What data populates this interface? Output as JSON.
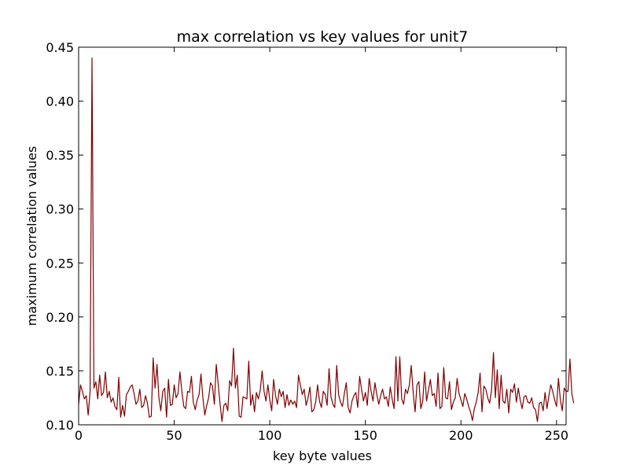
{
  "chart_data": {
    "type": "line",
    "title": "max correlation vs key values for unit7",
    "xlabel": "key byte values",
    "ylabel": "maximum correlation values",
    "xlim": [
      0,
      255
    ],
    "ylim": [
      0.1,
      0.45
    ],
    "x_ticks": [
      0,
      50,
      100,
      150,
      200,
      250
    ],
    "y_ticks": [
      "0.10",
      "0.15",
      "0.20",
      "0.25",
      "0.30",
      "0.35",
      "0.40",
      "0.45"
    ],
    "grid": false,
    "series": [
      {
        "color": "#800000",
        "values": [
          0.119,
          0.137,
          0.131,
          0.124,
          0.127,
          0.109,
          0.131,
          0.44,
          0.134,
          0.14,
          0.124,
          0.146,
          0.127,
          0.13,
          0.149,
          0.125,
          0.131,
          0.121,
          0.125,
          0.117,
          0.114,
          0.144,
          0.107,
          0.118,
          0.108,
          0.128,
          0.131,
          0.135,
          0.137,
          0.129,
          0.119,
          0.122,
          0.133,
          0.116,
          0.118,
          0.127,
          0.12,
          0.107,
          0.108,
          0.162,
          0.134,
          0.156,
          0.125,
          0.113,
          0.131,
          0.134,
          0.107,
          0.142,
          0.118,
          0.119,
          0.137,
          0.125,
          0.129,
          0.149,
          0.131,
          0.117,
          0.115,
          0.131,
          0.13,
          0.145,
          0.121,
          0.114,
          0.123,
          0.128,
          0.147,
          0.125,
          0.109,
          0.118,
          0.125,
          0.139,
          0.136,
          0.119,
          0.156,
          0.138,
          0.119,
          0.103,
          0.118,
          0.12,
          0.113,
          0.141,
          0.136,
          0.171,
          0.134,
          0.146,
          0.108,
          0.107,
          0.126,
          0.125,
          0.124,
          0.159,
          0.118,
          0.128,
          0.112,
          0.13,
          0.124,
          0.132,
          0.15,
          0.131,
          0.122,
          0.137,
          0.123,
          0.113,
          0.142,
          0.127,
          0.119,
          0.133,
          0.126,
          0.131,
          0.116,
          0.128,
          0.118,
          0.123,
          0.119,
          0.122,
          0.116,
          0.146,
          0.137,
          0.128,
          0.133,
          0.118,
          0.125,
          0.135,
          0.112,
          0.114,
          0.121,
          0.137,
          0.122,
          0.116,
          0.131,
          0.128,
          0.118,
          0.152,
          0.126,
          0.119,
          0.116,
          0.155,
          0.128,
          0.121,
          0.117,
          0.129,
          0.139,
          0.116,
          0.111,
          0.122,
          0.127,
          0.13,
          0.116,
          0.145,
          0.133,
          0.122,
          0.13,
          0.118,
          0.143,
          0.131,
          0.122,
          0.139,
          0.128,
          0.119,
          0.127,
          0.133,
          0.124,
          0.126,
          0.117,
          0.135,
          0.124,
          0.115,
          0.163,
          0.122,
          0.163,
          0.124,
          0.119,
          0.133,
          0.129,
          0.137,
          0.155,
          0.13,
          0.112,
          0.137,
          0.14,
          0.115,
          0.122,
          0.149,
          0.122,
          0.132,
          0.142,
          0.127,
          0.129,
          0.117,
          0.148,
          0.115,
          0.117,
          0.153,
          0.125,
          0.124,
          0.14,
          0.114,
          0.121,
          0.125,
          0.143,
          0.129,
          0.123,
          0.117,
          0.129,
          0.124,
          0.117,
          0.112,
          0.104,
          0.115,
          0.121,
          0.13,
          0.148,
          0.112,
          0.136,
          0.133,
          0.125,
          0.12,
          0.132,
          0.167,
          0.125,
          0.151,
          0.115,
          0.146,
          0.122,
          0.12,
          0.133,
          0.111,
          0.133,
          0.13,
          0.138,
          0.121,
          0.134,
          0.123,
          0.115,
          0.126,
          0.127,
          0.121,
          0.12,
          0.125,
          0.116,
          0.114,
          0.103,
          0.12,
          0.121,
          0.113,
          0.13,
          0.115,
          0.127,
          0.137,
          0.131,
          0.123,
          0.117,
          0.143,
          0.123,
          0.113,
          0.134,
          0.131,
          0.131,
          0.161,
          0.129,
          0.12
        ]
      }
    ]
  }
}
